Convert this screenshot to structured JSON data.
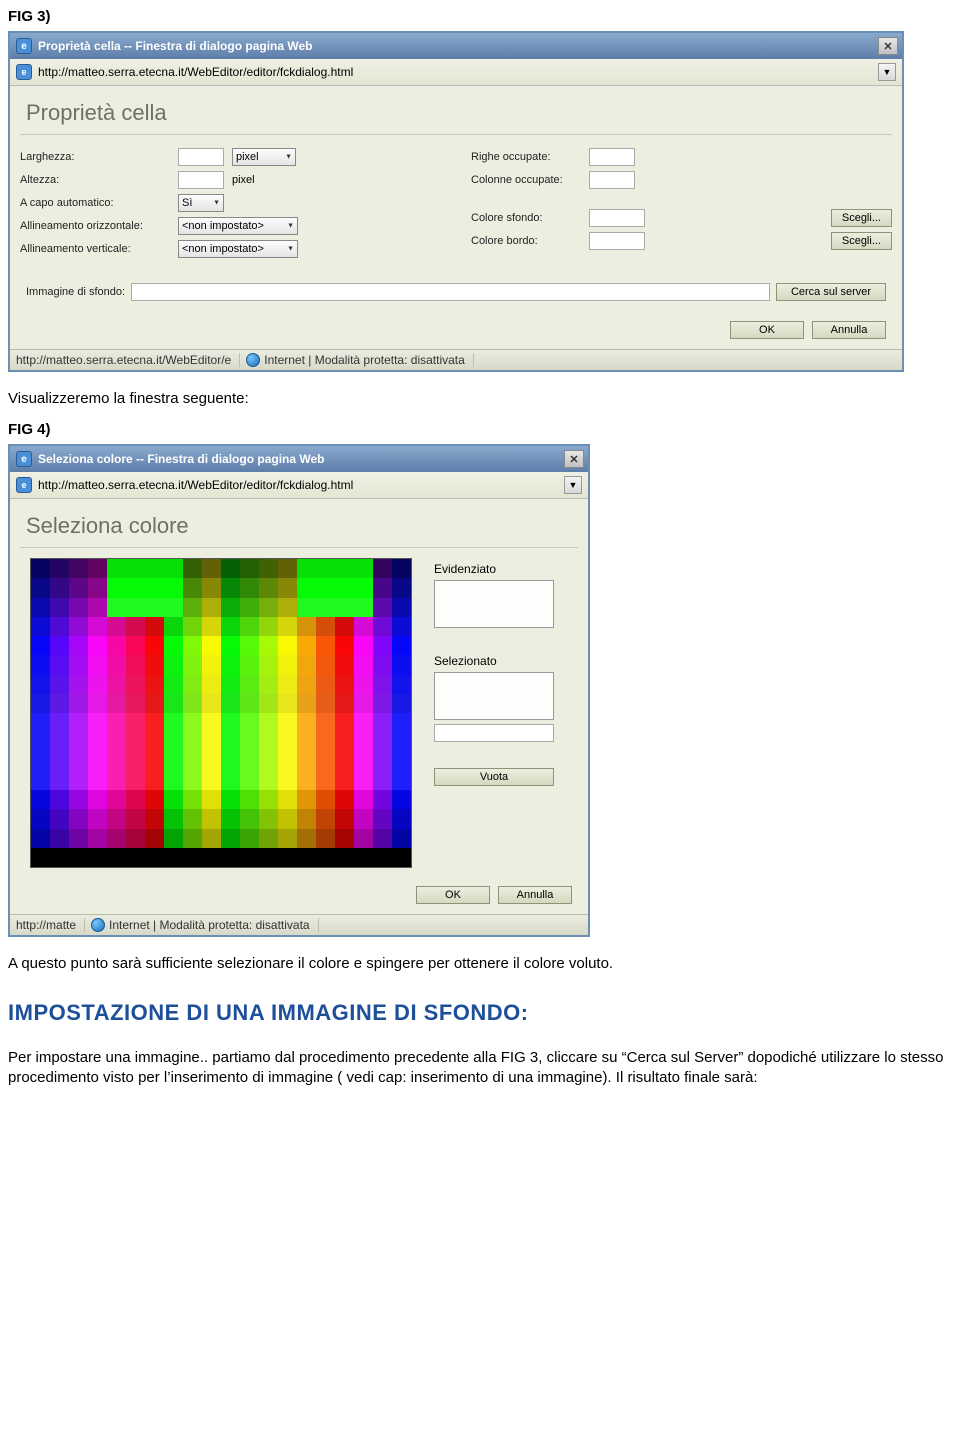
{
  "fig3": {
    "label": "FIG 3)",
    "titlebar": "Proprietà cella -- Finestra di dialogo pagina Web",
    "url": "http://matteo.serra.etecna.it/WebEditor/editor/fckdialog.html",
    "dialog_title": "Proprietà cella",
    "left": {
      "larghezza": "Larghezza:",
      "pixel1": "pixel",
      "altezza": "Altezza:",
      "pixel2": "pixel",
      "acapo": "A capo automatico:",
      "acapo_val": "Sì",
      "halign": "Allineamento orizzontale:",
      "halign_val": "<non impostato>",
      "valign": "Allineamento verticale:",
      "valign_val": "<non impostato>"
    },
    "right": {
      "righe": "Righe occupate:",
      "colonne": "Colonne occupate:",
      "sfondo": "Colore sfondo:",
      "bordo": "Colore bordo:",
      "scegli": "Scegli..."
    },
    "bgimg_label": "Immagine di sfondo:",
    "cerca_server": "Cerca sul server",
    "ok": "OK",
    "annulla": "Annulla",
    "status_left": "http://matteo.serra.etecna.it/WebEditor/e",
    "status_right": "Internet | Modalità protetta: disattivata"
  },
  "caption1": "Visualizzeremo la finestra seguente:",
  "fig4": {
    "label": "FIG 4)",
    "titlebar": "Seleziona colore -- Finestra di dialogo pagina Web",
    "url": "http://matteo.serra.etecna.it/WebEditor/editor/fckdialog.html",
    "dialog_title": "Seleziona colore",
    "evidenziato": "Evidenziato",
    "selezionato": "Selezionato",
    "vuota": "Vuota",
    "ok": "OK",
    "annulla": "Annulla",
    "status_left": "http://matte",
    "status_right": "Internet | Modalità protetta: disattivata"
  },
  "caption2": "A questo punto sarà sufficiente selezionare il colore e spingere per ottenere il colore voluto.",
  "heading": "IMPOSTAZIONE DI UNA IMMAGINE DI SFONDO:",
  "para": "Per impostare una immagine.. partiamo dal procedimento precedente alla FIG 3, cliccare su “Cerca sul Server” dopodiché utilizzare lo stesso procedimento visto per l’inserimento di immagine ( vedi cap: inserimento di una immagine). Il risultato finale sarà:",
  "palette_rows": 16,
  "palette_cols": 20,
  "colors": {
    "window_border": "#6b8fb5",
    "window_bg": "#eceee0",
    "titlebar_from": "#8aa9ce",
    "titlebar_to": "#5d7ea9",
    "dialog_title_color": "#6f7167",
    "heading_color": "#1e4f9a",
    "btn_from": "#edeedf",
    "btn_to": "#d6d8c1",
    "btn_border": "#8f9279"
  }
}
